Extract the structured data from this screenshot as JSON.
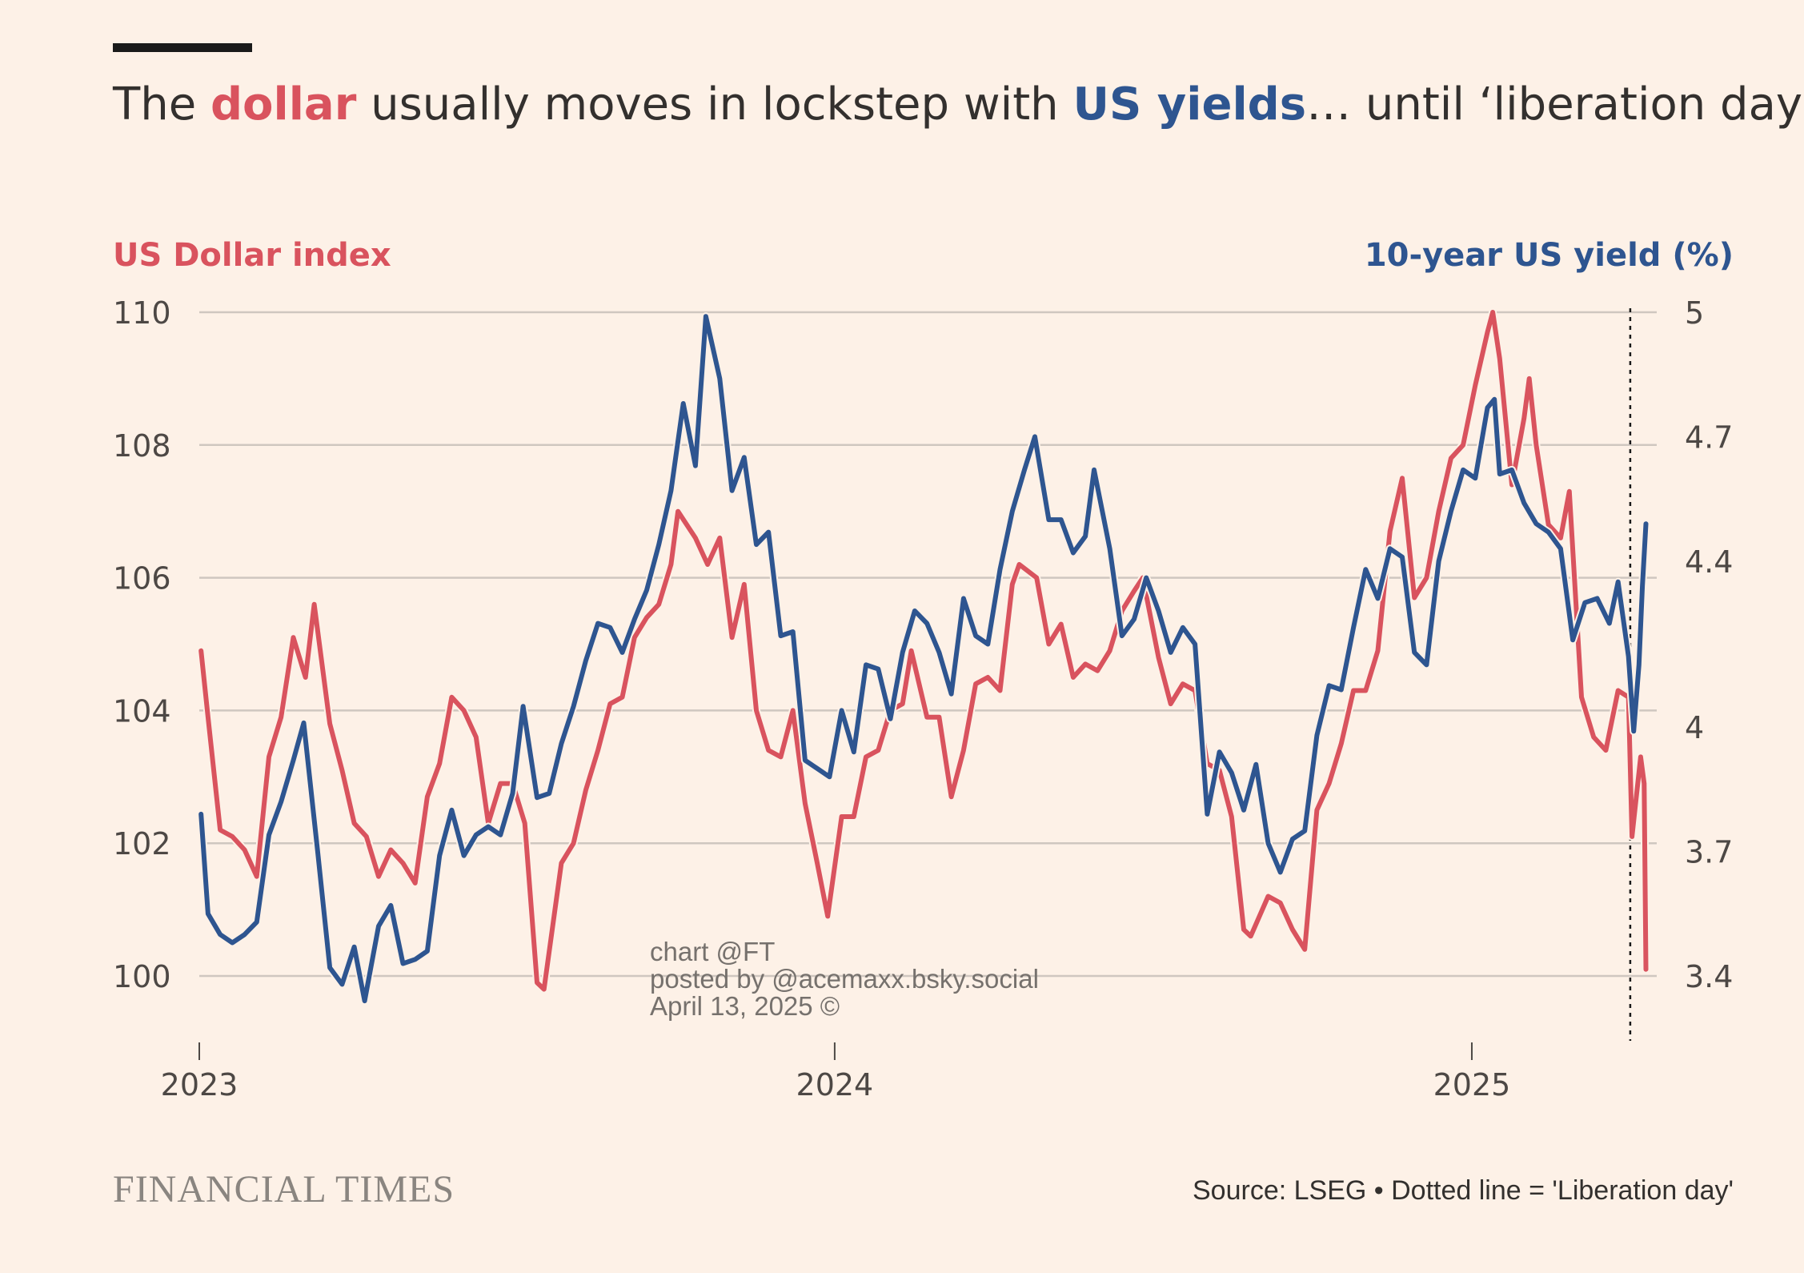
{
  "header": {
    "title_pre": "The ",
    "title_dollar": "dollar",
    "title_mid": " usually moves in lockstep with ",
    "title_yields": "US yields",
    "title_post": "… until ‘liberation day’"
  },
  "colors": {
    "dollar": "#d9535e",
    "yield": "#2e5590",
    "background": "#fdf1e7",
    "grid": "#cfc7c0"
  },
  "chart_data": {
    "type": "line",
    "xlabel": "",
    "y_left_label": "US Dollar index",
    "y_right_label": "10-year US yield (%)",
    "x_range": [
      "2023-01-01",
      "2025-04-14"
    ],
    "x_ticks": [
      "2023",
      "2024",
      "2025"
    ],
    "y_left_ticks": [
      100,
      102,
      104,
      106,
      108,
      110
    ],
    "y_left_range": [
      99,
      110
    ],
    "y_right_ticks": [
      "3.4",
      "3.7",
      "4",
      "4.4",
      "4.7",
      "5"
    ],
    "y_right_range": [
      3.3,
      5
    ],
    "annotation": {
      "label": "Liberation day",
      "date": "2025-04-02"
    },
    "grid": true,
    "series": [
      {
        "name": "US Dollar index",
        "axis": "left",
        "points": [
          [
            "2023-01-02",
            104.9
          ],
          [
            "2023-01-06",
            103.9
          ],
          [
            "2023-01-13",
            102.2
          ],
          [
            "2023-01-20",
            102.1
          ],
          [
            "2023-01-27",
            101.9
          ],
          [
            "2023-02-03",
            101.5
          ],
          [
            "2023-02-10",
            103.3
          ],
          [
            "2023-02-17",
            103.9
          ],
          [
            "2023-02-24",
            105.1
          ],
          [
            "2023-03-03",
            104.5
          ],
          [
            "2023-03-08",
            105.6
          ],
          [
            "2023-03-17",
            103.8
          ],
          [
            "2023-03-24",
            103.1
          ],
          [
            "2023-03-31",
            102.3
          ],
          [
            "2023-04-07",
            102.1
          ],
          [
            "2023-04-14",
            101.5
          ],
          [
            "2023-04-21",
            101.9
          ],
          [
            "2023-04-28",
            101.7
          ],
          [
            "2023-05-05",
            101.4
          ],
          [
            "2023-05-12",
            102.7
          ],
          [
            "2023-05-19",
            103.2
          ],
          [
            "2023-05-26",
            104.2
          ],
          [
            "2023-06-02",
            104.0
          ],
          [
            "2023-06-09",
            103.6
          ],
          [
            "2023-06-16",
            102.3
          ],
          [
            "2023-06-23",
            102.9
          ],
          [
            "2023-06-30",
            102.9
          ],
          [
            "2023-07-07",
            102.3
          ],
          [
            "2023-07-14",
            99.9
          ],
          [
            "2023-07-18",
            99.8
          ],
          [
            "2023-07-28",
            101.7
          ],
          [
            "2023-08-04",
            102.0
          ],
          [
            "2023-08-11",
            102.8
          ],
          [
            "2023-08-18",
            103.4
          ],
          [
            "2023-08-25",
            104.1
          ],
          [
            "2023-09-01",
            104.2
          ],
          [
            "2023-09-08",
            105.1
          ],
          [
            "2023-09-15",
            105.4
          ],
          [
            "2023-09-22",
            105.6
          ],
          [
            "2023-09-29",
            106.2
          ],
          [
            "2023-10-03",
            107.0
          ],
          [
            "2023-10-13",
            106.6
          ],
          [
            "2023-10-20",
            106.2
          ],
          [
            "2023-10-27",
            106.6
          ],
          [
            "2023-11-03",
            105.1
          ],
          [
            "2023-11-10",
            105.9
          ],
          [
            "2023-11-17",
            104.0
          ],
          [
            "2023-11-24",
            103.4
          ],
          [
            "2023-12-01",
            103.3
          ],
          [
            "2023-12-08",
            104.0
          ],
          [
            "2023-12-15",
            102.6
          ],
          [
            "2023-12-22",
            101.7
          ],
          [
            "2023-12-28",
            100.9
          ],
          [
            "2024-01-05",
            102.4
          ],
          [
            "2024-01-12",
            102.4
          ],
          [
            "2024-01-19",
            103.3
          ],
          [
            "2024-01-26",
            103.4
          ],
          [
            "2024-02-02",
            104.0
          ],
          [
            "2024-02-09",
            104.1
          ],
          [
            "2024-02-14",
            104.9
          ],
          [
            "2024-02-23",
            103.9
          ],
          [
            "2024-03-01",
            103.9
          ],
          [
            "2024-03-08",
            102.7
          ],
          [
            "2024-03-15",
            103.4
          ],
          [
            "2024-03-22",
            104.4
          ],
          [
            "2024-03-29",
            104.5
          ],
          [
            "2024-04-05",
            104.3
          ],
          [
            "2024-04-12",
            105.9
          ],
          [
            "2024-04-16",
            106.2
          ],
          [
            "2024-04-26",
            106.0
          ],
          [
            "2024-05-03",
            105.0
          ],
          [
            "2024-05-10",
            105.3
          ],
          [
            "2024-05-17",
            104.5
          ],
          [
            "2024-05-24",
            104.7
          ],
          [
            "2024-05-31",
            104.6
          ],
          [
            "2024-06-07",
            104.9
          ],
          [
            "2024-06-14",
            105.5
          ],
          [
            "2024-06-21",
            105.8
          ],
          [
            "2024-06-26",
            106.0
          ],
          [
            "2024-07-05",
            104.8
          ],
          [
            "2024-07-12",
            104.1
          ],
          [
            "2024-07-19",
            104.4
          ],
          [
            "2024-07-26",
            104.3
          ],
          [
            "2024-08-02",
            103.2
          ],
          [
            "2024-08-09",
            103.1
          ],
          [
            "2024-08-16",
            102.4
          ],
          [
            "2024-08-23",
            100.7
          ],
          [
            "2024-08-27",
            100.6
          ],
          [
            "2024-09-06",
            101.2
          ],
          [
            "2024-09-13",
            101.1
          ],
          [
            "2024-09-20",
            100.7
          ],
          [
            "2024-09-27",
            100.4
          ],
          [
            "2024-10-04",
            102.5
          ],
          [
            "2024-10-11",
            102.9
          ],
          [
            "2024-10-18",
            103.5
          ],
          [
            "2024-10-25",
            104.3
          ],
          [
            "2024-11-01",
            104.3
          ],
          [
            "2024-11-08",
            104.9
          ],
          [
            "2024-11-15",
            106.7
          ],
          [
            "2024-11-22",
            107.5
          ],
          [
            "2024-11-29",
            105.7
          ],
          [
            "2024-12-06",
            106.0
          ],
          [
            "2024-12-13",
            107.0
          ],
          [
            "2024-12-20",
            107.8
          ],
          [
            "2024-12-27",
            108.0
          ],
          [
            "2025-01-03",
            108.9
          ],
          [
            "2025-01-10",
            109.7
          ],
          [
            "2025-01-13",
            110.0
          ],
          [
            "2025-01-17",
            109.3
          ],
          [
            "2025-01-24",
            107.4
          ],
          [
            "2025-01-31",
            108.4
          ],
          [
            "2025-02-03",
            109.0
          ],
          [
            "2025-02-07",
            108.0
          ],
          [
            "2025-02-14",
            106.8
          ],
          [
            "2025-02-21",
            106.6
          ],
          [
            "2025-02-26",
            107.3
          ],
          [
            "2025-03-05",
            104.2
          ],
          [
            "2025-03-12",
            103.6
          ],
          [
            "2025-03-19",
            103.4
          ],
          [
            "2025-03-26",
            104.3
          ],
          [
            "2025-04-01",
            104.2
          ],
          [
            "2025-04-03",
            102.1
          ],
          [
            "2025-04-08",
            103.3
          ],
          [
            "2025-04-10",
            102.9
          ],
          [
            "2025-04-11",
            100.1
          ]
        ]
      },
      {
        "name": "10-year US yield (%)",
        "axis": "right",
        "points": [
          [
            "2023-01-02",
            3.79
          ],
          [
            "2023-01-06",
            3.55
          ],
          [
            "2023-01-13",
            3.5
          ],
          [
            "2023-01-20",
            3.48
          ],
          [
            "2023-01-27",
            3.5
          ],
          [
            "2023-02-03",
            3.53
          ],
          [
            "2023-02-10",
            3.74
          ],
          [
            "2023-02-17",
            3.82
          ],
          [
            "2023-02-24",
            3.92
          ],
          [
            "2023-03-02",
            4.01
          ],
          [
            "2023-03-10",
            3.7
          ],
          [
            "2023-03-17",
            3.42
          ],
          [
            "2023-03-24",
            3.38
          ],
          [
            "2023-03-31",
            3.47
          ],
          [
            "2023-04-06",
            3.34
          ],
          [
            "2023-04-14",
            3.52
          ],
          [
            "2023-04-21",
            3.57
          ],
          [
            "2023-04-28",
            3.43
          ],
          [
            "2023-05-05",
            3.44
          ],
          [
            "2023-05-12",
            3.46
          ],
          [
            "2023-05-19",
            3.69
          ],
          [
            "2023-05-26",
            3.8
          ],
          [
            "2023-06-02",
            3.69
          ],
          [
            "2023-06-09",
            3.74
          ],
          [
            "2023-06-16",
            3.76
          ],
          [
            "2023-06-23",
            3.74
          ],
          [
            "2023-06-30",
            3.84
          ],
          [
            "2023-07-06",
            4.05
          ],
          [
            "2023-07-14",
            3.83
          ],
          [
            "2023-07-21",
            3.84
          ],
          [
            "2023-07-28",
            3.96
          ],
          [
            "2023-08-04",
            4.05
          ],
          [
            "2023-08-11",
            4.16
          ],
          [
            "2023-08-18",
            4.25
          ],
          [
            "2023-08-25",
            4.24
          ],
          [
            "2023-09-01",
            4.18
          ],
          [
            "2023-09-08",
            4.26
          ],
          [
            "2023-09-15",
            4.33
          ],
          [
            "2023-09-22",
            4.44
          ],
          [
            "2023-09-29",
            4.57
          ],
          [
            "2023-10-06",
            4.78
          ],
          [
            "2023-10-13",
            4.63
          ],
          [
            "2023-10-19",
            4.99
          ],
          [
            "2023-10-27",
            4.84
          ],
          [
            "2023-11-03",
            4.57
          ],
          [
            "2023-11-10",
            4.65
          ],
          [
            "2023-11-17",
            4.44
          ],
          [
            "2023-11-24",
            4.47
          ],
          [
            "2023-12-01",
            4.22
          ],
          [
            "2023-12-08",
            4.23
          ],
          [
            "2023-12-15",
            3.92
          ],
          [
            "2023-12-22",
            3.9
          ],
          [
            "2023-12-29",
            3.88
          ],
          [
            "2024-01-05",
            4.04
          ],
          [
            "2024-01-12",
            3.94
          ],
          [
            "2024-01-19",
            4.15
          ],
          [
            "2024-01-26",
            4.14
          ],
          [
            "2024-02-02",
            4.02
          ],
          [
            "2024-02-09",
            4.18
          ],
          [
            "2024-02-16",
            4.28
          ],
          [
            "2024-02-23",
            4.25
          ],
          [
            "2024-03-01",
            4.18
          ],
          [
            "2024-03-08",
            4.08
          ],
          [
            "2024-03-15",
            4.31
          ],
          [
            "2024-03-22",
            4.22
          ],
          [
            "2024-03-29",
            4.2
          ],
          [
            "2024-04-05",
            4.38
          ],
          [
            "2024-04-12",
            4.52
          ],
          [
            "2024-04-19",
            4.62
          ],
          [
            "2024-04-25",
            4.7
          ],
          [
            "2024-05-03",
            4.5
          ],
          [
            "2024-05-10",
            4.5
          ],
          [
            "2024-05-17",
            4.42
          ],
          [
            "2024-05-24",
            4.46
          ],
          [
            "2024-05-29",
            4.62
          ],
          [
            "2024-06-07",
            4.43
          ],
          [
            "2024-06-14",
            4.22
          ],
          [
            "2024-06-21",
            4.26
          ],
          [
            "2024-06-28",
            4.36
          ],
          [
            "2024-07-05",
            4.28
          ],
          [
            "2024-07-12",
            4.18
          ],
          [
            "2024-07-19",
            4.24
          ],
          [
            "2024-07-26",
            4.2
          ],
          [
            "2024-08-02",
            3.79
          ],
          [
            "2024-08-09",
            3.94
          ],
          [
            "2024-08-16",
            3.89
          ],
          [
            "2024-08-23",
            3.8
          ],
          [
            "2024-08-30",
            3.91
          ],
          [
            "2024-09-06",
            3.72
          ],
          [
            "2024-09-13",
            3.65
          ],
          [
            "2024-09-20",
            3.73
          ],
          [
            "2024-09-27",
            3.75
          ],
          [
            "2024-10-04",
            3.98
          ],
          [
            "2024-10-11",
            4.1
          ],
          [
            "2024-10-18",
            4.09
          ],
          [
            "2024-10-25",
            4.24
          ],
          [
            "2024-11-01",
            4.38
          ],
          [
            "2024-11-08",
            4.31
          ],
          [
            "2024-11-15",
            4.43
          ],
          [
            "2024-11-22",
            4.41
          ],
          [
            "2024-11-29",
            4.18
          ],
          [
            "2024-12-06",
            4.15
          ],
          [
            "2024-12-13",
            4.4
          ],
          [
            "2024-12-20",
            4.52
          ],
          [
            "2024-12-27",
            4.62
          ],
          [
            "2025-01-03",
            4.6
          ],
          [
            "2025-01-10",
            4.77
          ],
          [
            "2025-01-14",
            4.79
          ],
          [
            "2025-01-17",
            4.61
          ],
          [
            "2025-01-24",
            4.62
          ],
          [
            "2025-01-31",
            4.54
          ],
          [
            "2025-02-07",
            4.49
          ],
          [
            "2025-02-14",
            4.47
          ],
          [
            "2025-02-21",
            4.43
          ],
          [
            "2025-02-28",
            4.21
          ],
          [
            "2025-03-07",
            4.3
          ],
          [
            "2025-03-14",
            4.31
          ],
          [
            "2025-03-21",
            4.25
          ],
          [
            "2025-03-26",
            4.35
          ],
          [
            "2025-04-01",
            4.17
          ],
          [
            "2025-04-04",
            3.99
          ],
          [
            "2025-04-07",
            4.15
          ],
          [
            "2025-04-09",
            4.34
          ],
          [
            "2025-04-11",
            4.49
          ]
        ]
      }
    ]
  },
  "watermark": {
    "line1": "chart @FT",
    "line2": "posted by @acemaxx.bsky.social",
    "line3": "April 13, 2025 ©"
  },
  "footer": {
    "logo": "FINANCIAL TIMES",
    "source": "Source: LSEG • Dotted line = 'Liberation day'"
  }
}
